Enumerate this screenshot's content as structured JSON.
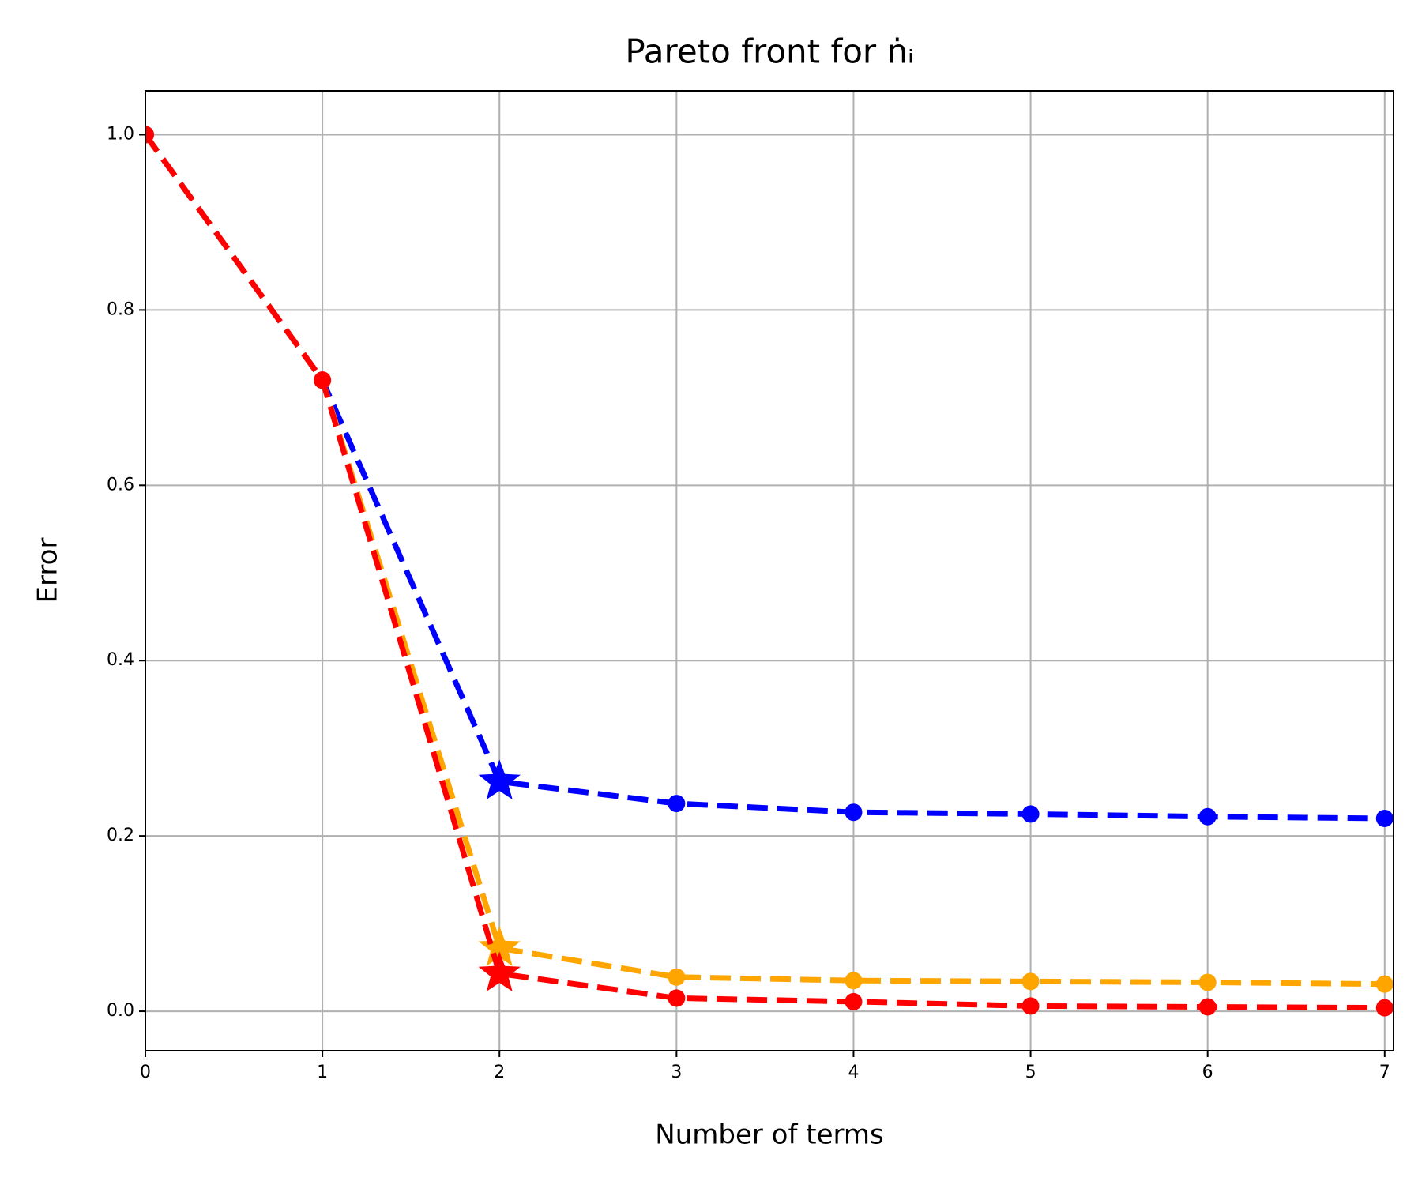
{
  "chart_data": {
    "type": "line",
    "title": "Pareto front for ṅᵢ",
    "xlabel": "Number of terms",
    "ylabel": "Error",
    "x": [
      0,
      1,
      2,
      3,
      4,
      5,
      6,
      7
    ],
    "series": [
      {
        "color": "#0000ff",
        "values": [
          1.0,
          0.72,
          0.262,
          0.237,
          0.227,
          0.225,
          0.222,
          0.22
        ],
        "star_index": 2
      },
      {
        "color": "#ffa500",
        "values": [
          1.0,
          0.72,
          0.072,
          0.039,
          0.035,
          0.034,
          0.033,
          0.031
        ],
        "star_index": 2
      },
      {
        "color": "#ff0000",
        "values": [
          1.0,
          0.72,
          0.043,
          0.015,
          0.011,
          0.006,
          0.005,
          0.004
        ],
        "star_index": 2
      }
    ],
    "xlim": [
      0,
      7.05
    ],
    "ylim": [
      -0.045,
      1.05
    ],
    "xticks": [
      0,
      1,
      2,
      3,
      4,
      5,
      6,
      7
    ],
    "yticks": [
      {
        "value": 0,
        "label": "0.0"
      },
      0.2,
      0.4,
      0.6,
      0.8,
      {
        "value": 1,
        "label": "1.0"
      }
    ],
    "grid": true
  }
}
